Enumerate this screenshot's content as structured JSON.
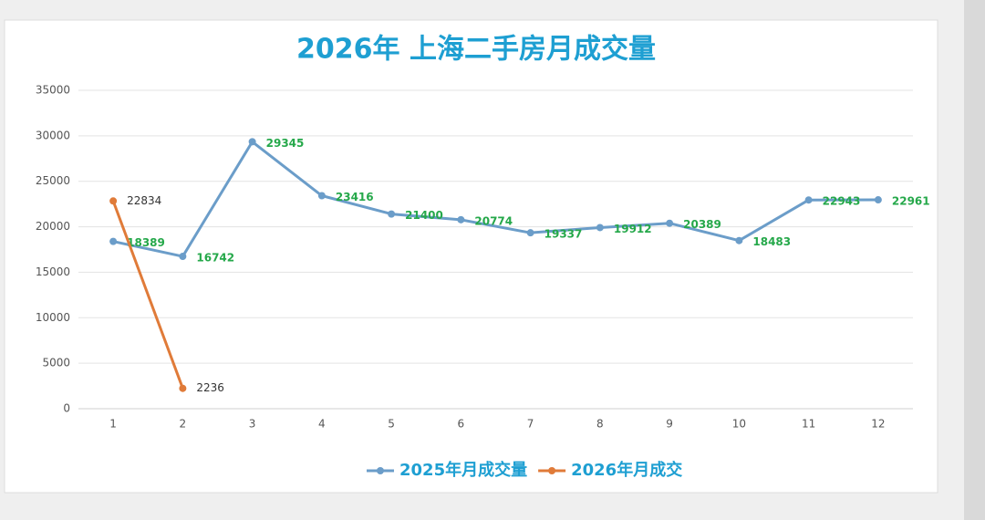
{
  "chart_data": {
    "type": "line",
    "title": "2026年 上海二手房月成交量",
    "categories": [
      "1",
      "2",
      "3",
      "4",
      "5",
      "6",
      "7",
      "8",
      "9",
      "10",
      "11",
      "12"
    ],
    "series": [
      {
        "name": "2025年月成交量",
        "color": "#6b9dc9",
        "label_color": "#25a84a",
        "values": [
          18389,
          16742,
          29345,
          23416,
          21400,
          20774,
          19337,
          19912,
          20389,
          18483,
          22943,
          22961
        ]
      },
      {
        "name": "2026年月成交",
        "color": "#e07b39",
        "label_color": "#333333",
        "values": [
          22834,
          2236,
          null,
          null,
          null,
          null,
          null,
          null,
          null,
          null,
          null,
          null
        ]
      }
    ],
    "ylim": [
      0,
      35000
    ],
    "yticks": [
      0,
      5000,
      10000,
      15000,
      20000,
      25000,
      30000,
      35000
    ],
    "grid": true,
    "legend": "bottom"
  }
}
